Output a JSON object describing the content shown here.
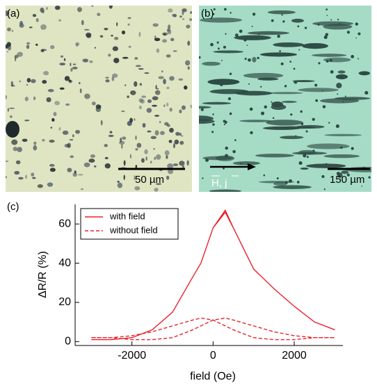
{
  "panels": {
    "a": {
      "label": "(a)",
      "scale_bar": "50 µm"
    },
    "b": {
      "label": "(b)",
      "field_label": "H, j",
      "scale_bar": "150 µm"
    },
    "c": {
      "label": "(c)"
    }
  },
  "chart_data": {
    "type": "line",
    "xlabel": "field (Oe)",
    "ylabel": "ΔR/R (%)",
    "xlim": [
      -3400,
      3200
    ],
    "ylim": [
      -2,
      70
    ],
    "xticks": [
      -2000,
      0,
      2000
    ],
    "yticks": [
      0,
      20,
      40,
      60
    ],
    "legend": "upper left",
    "series": [
      {
        "name": "with field",
        "color": "#e8202a",
        "dash": false,
        "x": [
          -3000,
          -2500,
          -2000,
          -1500,
          -1000,
          -500,
          -300,
          0,
          300,
          500,
          1000,
          1500,
          2000,
          2500,
          3000,
          3000,
          2500,
          2000,
          1500,
          1000,
          500,
          300,
          0,
          -300,
          -500,
          -1000,
          -1500,
          -2000,
          -2500,
          -3000
        ],
        "values": [
          1,
          1,
          2,
          6,
          15,
          33,
          40,
          58,
          67,
          58,
          37,
          27,
          18,
          10,
          6,
          6,
          10,
          18,
          27,
          37,
          58,
          66,
          58,
          40,
          33,
          15,
          6,
          2,
          1,
          1
        ]
      },
      {
        "name": "without field",
        "color": "#e8202a",
        "dash": true,
        "x": [
          -3000,
          -2500,
          -2000,
          -1500,
          -1000,
          -500,
          -300,
          0,
          300,
          500,
          1000,
          1500,
          2000,
          2500,
          3000,
          3000,
          2500,
          2000,
          1500,
          1000,
          500,
          300,
          0,
          -300,
          -500,
          -1000,
          -1500,
          -2000,
          -2500,
          -3000
        ],
        "values": [
          2,
          2,
          1,
          1,
          2,
          6,
          8,
          11,
          12,
          11,
          8,
          5,
          3,
          2,
          2,
          2,
          2,
          1,
          1,
          2,
          6,
          8,
          11,
          12,
          11,
          8,
          5,
          3,
          2,
          2
        ]
      }
    ]
  }
}
